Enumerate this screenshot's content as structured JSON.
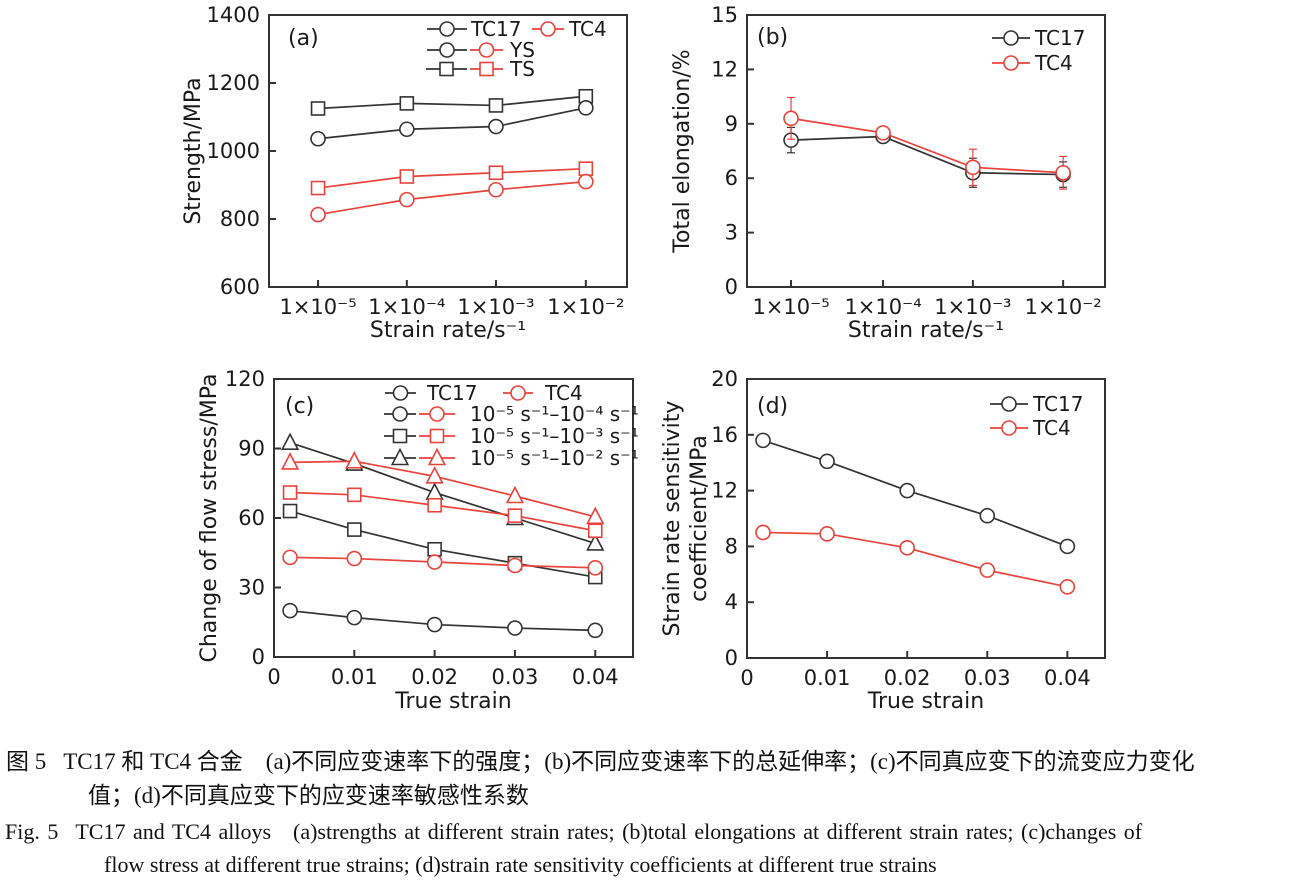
{
  "colors": {
    "black": "#333333",
    "red": "#e8433b",
    "text": "#1a1a1a"
  },
  "caption": {
    "zh": {
      "label": "图 5",
      "line1": "TC17 和 TC4 合金　(a)不同应变速率下的强度；(b)不同应变速率下的总延伸率；(c)不同真应变下的流变应力变化",
      "line2": "值；(d)不同真应变下的应变速率敏感性系数"
    },
    "en": {
      "label": "Fig. 5",
      "line1": "TC17 and TC4 alloys (a)strengths at different strain rates; (b)total elongations at different strain rates; (c)changes of",
      "line2": "flow stress at different true strains; (d)strain rate sensitivity coefficients at different true strains"
    }
  },
  "chart_data": [
    {
      "panel": "a",
      "tag": "(a)",
      "type": "line",
      "xlabel": "Strain rate/s⁻¹",
      "ylabel_lines": [
        "Strength/MPa"
      ],
      "x_type": "category",
      "categories": [
        "1×10⁻⁵",
        "1×10⁻⁴",
        "1×10⁻³",
        "1×10⁻²"
      ],
      "ylim": [
        600,
        1400
      ],
      "yticks": [
        600,
        800,
        1000,
        1200,
        1400
      ],
      "series": [
        {
          "name": "TC17 TS",
          "color": "black",
          "marker": "square",
          "values": [
            1125,
            1140,
            1134,
            1161
          ],
          "errors": [
            8,
            8,
            16,
            8
          ]
        },
        {
          "name": "TC17 YS",
          "color": "black",
          "marker": "circle",
          "values": [
            1036,
            1064,
            1072,
            1127
          ],
          "errors": [
            8,
            8,
            10,
            8
          ]
        },
        {
          "name": "TC4 TS",
          "color": "red",
          "marker": "square",
          "values": [
            891,
            925,
            936,
            948
          ],
          "errors": [
            8,
            10,
            8,
            10
          ]
        },
        {
          "name": "TC4 YS",
          "color": "red",
          "marker": "circle",
          "values": [
            813,
            857,
            886,
            910
          ],
          "errors": [
            8,
            6,
            8,
            8
          ]
        }
      ],
      "layout": {
        "box": {
          "l": 269,
          "t": 15,
          "r": 627,
          "b": 287
        },
        "cat_fractions": [
          0.137,
          0.385,
          0.634,
          0.885
        ],
        "ylabel_x": [
          200
        ],
        "tag_pos": [
          288,
          45
        ],
        "xlabel_y": 337,
        "legend_rows": [
          {
            "y": 29,
            "items": [
              {
                "g": "circle",
                "c": "black",
                "x1": 427,
                "x2": 467
              },
              {
                "t": "TC17",
                "x": 471
              },
              {
                "g": "circle",
                "c": "red",
                "x1": 532,
                "x2": 564
              },
              {
                "t": "TC4",
                "x": 569
              }
            ]
          },
          {
            "y": 50,
            "items": [
              {
                "g": "circle",
                "c": "black",
                "x1": 427,
                "x2": 467
              },
              {
                "g": "circle",
                "c": "red",
                "x1": 470,
                "x2": 503
              },
              {
                "t": "YS",
                "x": 510
              }
            ]
          },
          {
            "y": 69,
            "items": [
              {
                "g": "square",
                "c": "black",
                "x1": 426,
                "x2": 467
              },
              {
                "g": "square",
                "c": "red",
                "x1": 470,
                "x2": 503
              },
              {
                "t": "TS",
                "x": 510
              }
            ]
          }
        ]
      }
    },
    {
      "panel": "b",
      "tag": "(b)",
      "type": "line",
      "xlabel": "Strain rate/s⁻¹",
      "ylabel_lines": [
        "Total elongation/%"
      ],
      "x_type": "category",
      "categories": [
        "1×10⁻⁵",
        "1×10⁻⁴",
        "1×10⁻³",
        "1×10⁻²"
      ],
      "ylim": [
        0,
        15
      ],
      "yticks": [
        0,
        3,
        6,
        9,
        12,
        15
      ],
      "series": [
        {
          "name": "TC17",
          "color": "black",
          "marker": "circle",
          "values": [
            8.1,
            8.3,
            6.3,
            6.2
          ],
          "errors": [
            0.7,
            0.25,
            0.8,
            0.7
          ]
        },
        {
          "name": "TC4",
          "color": "red",
          "marker": "circle",
          "values": [
            9.3,
            8.5,
            6.6,
            6.3
          ],
          "errors": [
            1.15,
            0.3,
            1.0,
            0.9
          ]
        }
      ],
      "layout": {
        "box": {
          "l": 747,
          "t": 15,
          "r": 1105,
          "b": 287
        },
        "cat_fractions": [
          0.123,
          0.38,
          0.631,
          0.883
        ],
        "ylabel_x": [
          689
        ],
        "tag_pos": [
          757,
          44
        ],
        "xlabel_y": 337,
        "legend_rows": [
          {
            "y": 38,
            "items": [
              {
                "g": "circle",
                "c": "black",
                "x1": 992,
                "x2": 1030
              },
              {
                "t": "TC17",
                "x": 1035
              }
            ]
          },
          {
            "y": 63,
            "items": [
              {
                "g": "circle",
                "c": "red",
                "x1": 992,
                "x2": 1030
              },
              {
                "t": "TC4",
                "x": 1035
              }
            ]
          }
        ]
      }
    },
    {
      "panel": "c",
      "tag": "(c)",
      "type": "line",
      "xlabel": "True strain",
      "ylabel_lines": [
        "Change of flow stress/MPa"
      ],
      "x_type": "numeric",
      "x": [
        0.002,
        0.01,
        0.02,
        0.03,
        0.04
      ],
      "xlim": [
        0,
        0.0447
      ],
      "xticks": [
        0,
        0.01,
        0.02,
        0.03,
        0.04
      ],
      "xtick_labels": [
        "0",
        "0.01",
        "0.02",
        "0.03",
        "0.04"
      ],
      "ylim": [
        0,
        120
      ],
      "yticks": [
        0,
        30,
        60,
        90,
        120
      ],
      "series": [
        {
          "name": "TC17 10⁻⁵ s⁻¹–10⁻⁴ s⁻¹",
          "color": "black",
          "marker": "circle",
          "values": [
            20,
            17,
            14,
            12.5,
            11.5
          ]
        },
        {
          "name": "TC17 10⁻⁵ s⁻¹–10⁻³ s⁻¹",
          "color": "black",
          "marker": "square",
          "values": [
            63,
            55,
            46.5,
            40.5,
            34.5
          ]
        },
        {
          "name": "TC17 10⁻⁵ s⁻¹–10⁻² s⁻¹",
          "color": "black",
          "marker": "triangle",
          "values": [
            92.5,
            83.5,
            71,
            60,
            49
          ]
        },
        {
          "name": "TC4 10⁻⁵ s⁻¹–10⁻⁴ s⁻¹",
          "color": "red",
          "marker": "circle",
          "values": [
            43,
            42.5,
            41,
            39.5,
            38.5
          ]
        },
        {
          "name": "TC4 10⁻⁵ s⁻¹–10⁻³ s⁻¹",
          "color": "red",
          "marker": "square",
          "values": [
            71,
            70,
            65.5,
            61,
            54.5
          ]
        },
        {
          "name": "TC4 10⁻⁵ s⁻¹–10⁻² s⁻¹",
          "color": "red",
          "marker": "triangle",
          "values": [
            84,
            84.5,
            78,
            69.5,
            60.5
          ]
        }
      ],
      "layout": {
        "box": {
          "l": 274,
          "t": 379,
          "r": 633,
          "b": 657
        },
        "ylabel_x": [
          216
        ],
        "tag_pos": [
          285,
          413
        ],
        "xlabel_y": 708,
        "legend_rows": [
          {
            "y": 393,
            "items": [
              {
                "g": "circle",
                "c": "black",
                "x1": 385,
                "x2": 416
              },
              {
                "t": "TC17",
                "x": 427
              },
              {
                "g": "circle",
                "c": "red",
                "x1": 503,
                "x2": 533
              },
              {
                "t": "TC4",
                "x": 545
              }
            ]
          },
          {
            "y": 414,
            "items": [
              {
                "g": "circle",
                "c": "black",
                "x1": 384,
                "x2": 416
              },
              {
                "g": "circle",
                "c": "red",
                "x1": 419,
                "x2": 455
              },
              {
                "t": "10⁻⁵ s⁻¹–10⁻⁴ s⁻¹",
                "x": 470
              }
            ]
          },
          {
            "y": 436,
            "items": [
              {
                "g": "square",
                "c": "black",
                "x1": 384,
                "x2": 416
              },
              {
                "g": "square",
                "c": "red",
                "x1": 419,
                "x2": 455
              },
              {
                "t": "10⁻⁵ s⁻¹–10⁻³ s⁻¹",
                "x": 470
              }
            ]
          },
          {
            "y": 458,
            "items": [
              {
                "g": "triangle",
                "c": "black",
                "x1": 384,
                "x2": 416
              },
              {
                "g": "triangle",
                "c": "red",
                "x1": 419,
                "x2": 455
              },
              {
                "t": "10⁻⁵ s⁻¹–10⁻² s⁻¹",
                "x": 470
              }
            ]
          }
        ]
      }
    },
    {
      "panel": "d",
      "tag": "(d)",
      "type": "line",
      "xlabel": "True strain",
      "ylabel_lines": [
        "Strain rate sensitivity",
        "coefficient/MPa"
      ],
      "x_type": "numeric",
      "x": [
        0.002,
        0.01,
        0.02,
        0.03,
        0.04
      ],
      "xlim": [
        0,
        0.0447
      ],
      "xticks": [
        0,
        0.01,
        0.02,
        0.03,
        0.04
      ],
      "xtick_labels": [
        "0",
        "0.01",
        "0.02",
        "0.03",
        "0.04"
      ],
      "ylim": [
        0,
        20
      ],
      "yticks": [
        0,
        4,
        8,
        12,
        16,
        20
      ],
      "series": [
        {
          "name": "TC17",
          "color": "black",
          "marker": "circle",
          "values": [
            15.6,
            14.1,
            12.0,
            10.2,
            8.0
          ]
        },
        {
          "name": "TC4",
          "color": "red",
          "marker": "circle",
          "values": [
            9.0,
            8.9,
            7.9,
            6.3,
            5.1
          ]
        }
      ],
      "layout": {
        "box": {
          "l": 747,
          "t": 379,
          "r": 1105,
          "b": 658
        },
        "ylabel_x": [
          679,
          706
        ],
        "tag_pos": [
          757,
          413
        ],
        "xlabel_y": 708,
        "legend_rows": [
          {
            "y": 404,
            "items": [
              {
                "g": "circle",
                "c": "black",
                "x1": 990,
                "x2": 1028
              },
              {
                "t": "TC17",
                "x": 1033
              }
            ]
          },
          {
            "y": 428,
            "items": [
              {
                "g": "circle",
                "c": "red",
                "x1": 990,
                "x2": 1028
              },
              {
                "t": "TC4",
                "x": 1033
              }
            ]
          }
        ]
      }
    }
  ]
}
